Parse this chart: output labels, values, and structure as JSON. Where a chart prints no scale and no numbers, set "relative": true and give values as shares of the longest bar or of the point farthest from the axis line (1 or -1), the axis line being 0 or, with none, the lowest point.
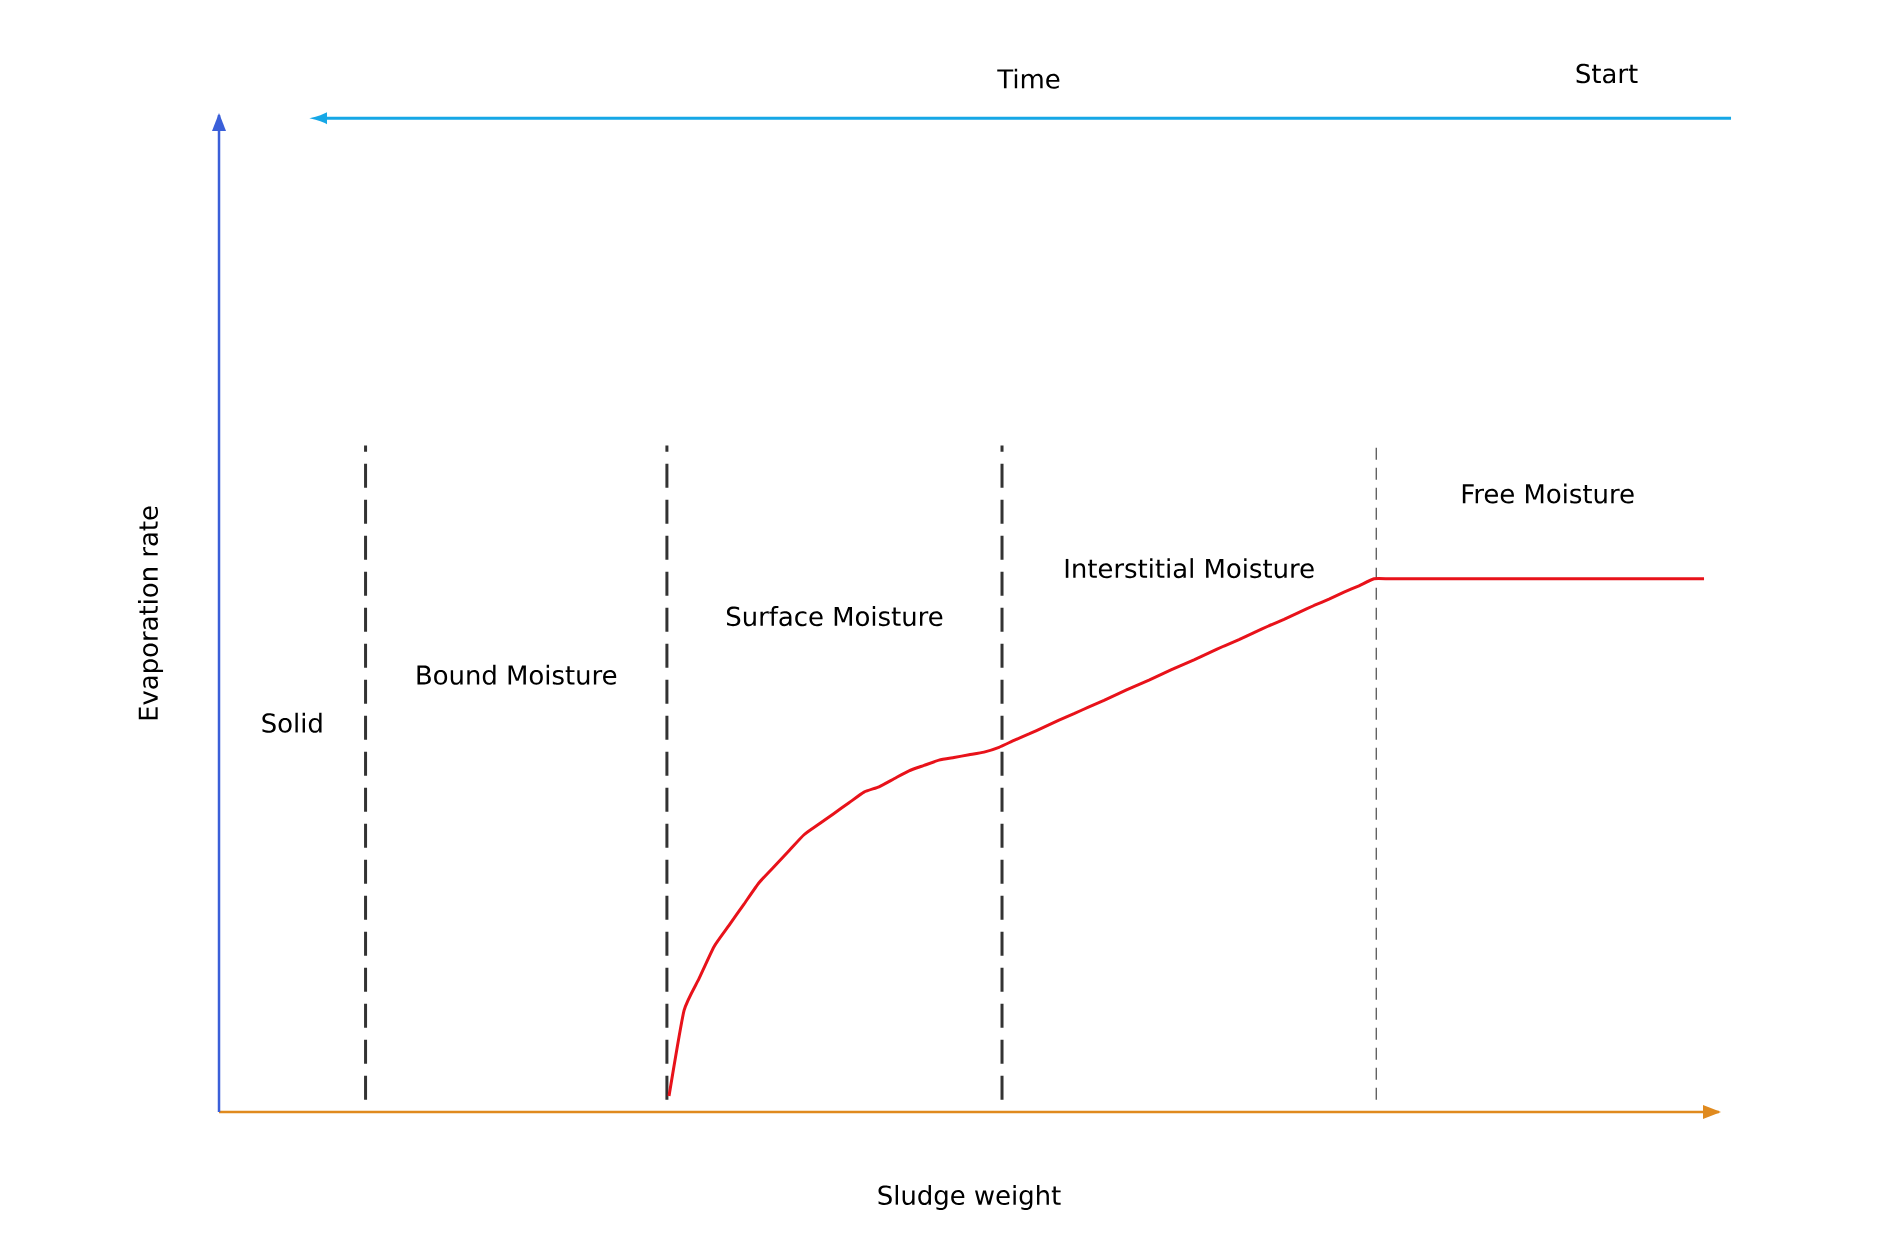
{
  "chart_data": {
    "type": "line",
    "relative": true,
    "color": "#e8121a",
    "grid": "x",
    "xlabel": "Sludge weight",
    "ylabel": "Evaporation rate",
    "categories": [
      null,
      null,
      null,
      null,
      null,
      null,
      null,
      null,
      null,
      null,
      null,
      null,
      null,
      null,
      null,
      null,
      null,
      null,
      null,
      null,
      null,
      null,
      null,
      null,
      null,
      null,
      null,
      null,
      null,
      null,
      null,
      null,
      null,
      null,
      null,
      null,
      null,
      null,
      null,
      null,
      null,
      null,
      null,
      null,
      null,
      null,
      null,
      null,
      null,
      null,
      null,
      null,
      null,
      null,
      null,
      null,
      null,
      null,
      null,
      null,
      null,
      null,
      null,
      null,
      null,
      null,
      null,
      null,
      null,
      null,
      null,
      null,
      null,
      null,
      null,
      null,
      null,
      null,
      null,
      null,
      null,
      null,
      null,
      null,
      null,
      null,
      null,
      null,
      null,
      null,
      null,
      null,
      null,
      null,
      null,
      null,
      null,
      null,
      null,
      null,
      null
    ],
    "values": [
      null,
      null,
      null,
      null,
      null,
      null,
      null,
      null,
      null,
      null,
      null,
      null,
      null,
      null,
      null,
      null,
      null,
      null,
      null,
      null,
      null,
      null,
      null,
      null,
      null,
      null,
      null,
      null,
      null,
      null,
      0.03,
      0.19,
      0.25,
      0.31,
      0.35,
      0.39,
      0.43,
      0.46,
      0.49,
      0.52,
      0.54,
      0.56,
      0.58,
      0.6,
      0.61,
      0.625,
      0.64,
      0.65,
      0.66,
      0.665,
      0.67,
      0.675,
      0.684,
      0.697,
      0.709,
      0.722,
      0.735,
      0.747,
      0.76,
      0.772,
      0.785,
      0.798,
      0.81,
      0.823,
      0.836,
      0.848,
      0.861,
      0.874,
      0.886,
      0.899,
      0.912,
      0.924,
      0.937,
      0.95,
      0.962,
      0.975,
      0.987,
      1,
      1,
      1,
      1,
      1,
      1,
      1,
      1,
      1,
      1,
      1,
      1,
      1,
      1,
      1,
      1,
      1,
      1,
      1,
      1,
      1,
      1,
      1,
      null
    ],
    "annotations": [
      "Time",
      "Start",
      "Solid",
      "Bound Moisture",
      "Surface Moisture",
      "Interstitial Moisture",
      "Free Moisture"
    ]
  }
}
